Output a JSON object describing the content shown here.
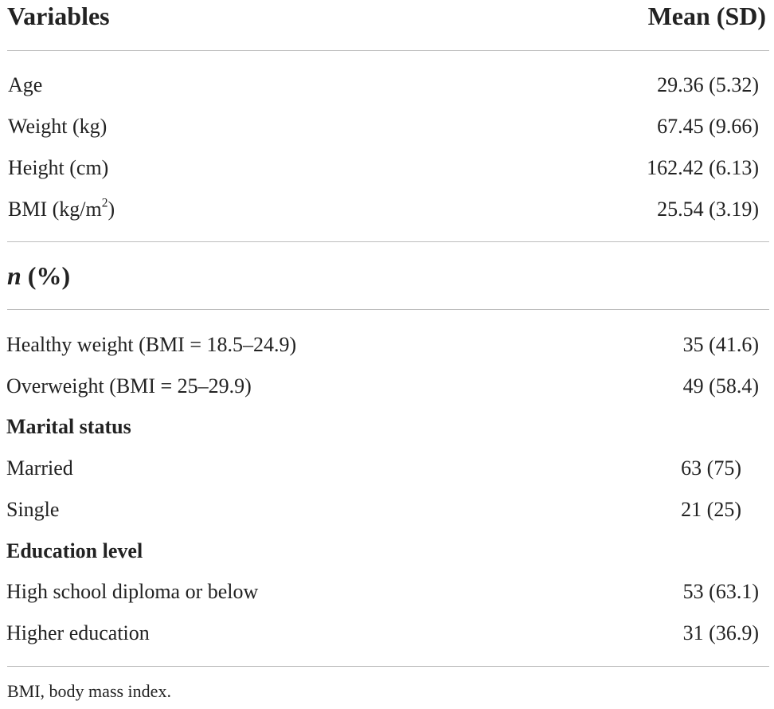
{
  "header": {
    "variables_label": "Variables",
    "mean_label": "Mean (SD)"
  },
  "continuous_rows": [
    {
      "label": "Age",
      "value": "29.36 (5.32)"
    },
    {
      "label": "Weight (kg)",
      "value": "67.45 (9.66)"
    },
    {
      "label": "Height (cm)",
      "value": "162.42 (6.13)"
    },
    {
      "label_prefix": "BMI (kg/m",
      "label_sup": "2",
      "label_suffix": ")",
      "value": "25.54 (3.19)"
    }
  ],
  "n_header": {
    "n_symbol": "n",
    "pct": " (%)"
  },
  "bmi_rows": [
    {
      "label": "Healthy weight (BMI = 18.5–24.9)",
      "value": "35 (41.6)"
    },
    {
      "label": "Overweight (BMI = 25–29.9)",
      "value": "49 (58.4)"
    }
  ],
  "marital": {
    "label": "Marital status",
    "rows": [
      {
        "label": "Married",
        "value": "63 (75)"
      },
      {
        "label": "Single",
        "value": "21 (25)"
      }
    ]
  },
  "education": {
    "label": "Education level",
    "rows": [
      {
        "label": "High school diploma or below",
        "value": "53 (63.1)"
      },
      {
        "label": "Higher education",
        "value": "31 (36.9)"
      }
    ]
  },
  "footnote": "BMI, body mass index."
}
